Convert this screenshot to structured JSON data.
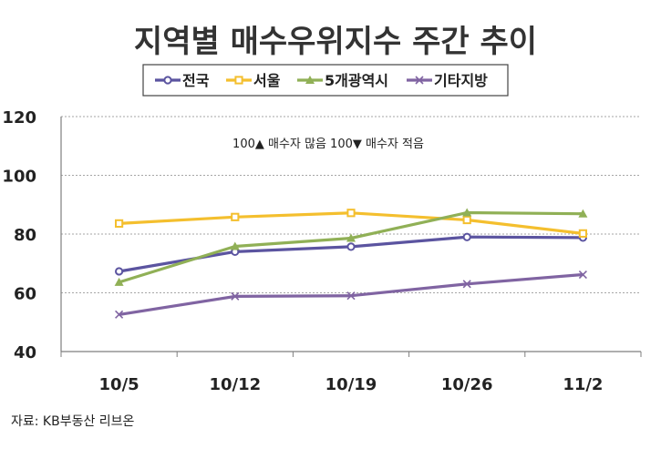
{
  "chart_data": {
    "type": "line",
    "title": "지역별 매수우위지수 주간 추이",
    "annotation": "100▲ 매수자 많음 100▼ 매수자 적음",
    "source": "자료: KB부동산 리브온",
    "categories": [
      "10/5",
      "10/12",
      "10/19",
      "10/26",
      "11/2"
    ],
    "ylim": [
      40,
      120
    ],
    "yticks": [
      "40",
      "60",
      "80",
      "100",
      "120"
    ],
    "grid": true,
    "legend_position": "top",
    "series": [
      {
        "name": "전국",
        "color": "#5b54a0",
        "marker": "circle",
        "values": [
          67.3,
          74.0,
          75.7,
          79.0,
          78.8
        ]
      },
      {
        "name": "서울",
        "color": "#f4bf2e",
        "marker": "square",
        "values": [
          83.6,
          85.8,
          87.2,
          84.8,
          80.2
        ]
      },
      {
        "name": "5개광역시",
        "color": "#90b056",
        "marker": "triangle",
        "values": [
          63.6,
          75.8,
          78.6,
          87.3,
          86.9
        ]
      },
      {
        "name": "기타지방",
        "color": "#8064a2",
        "marker": "x",
        "values": [
          52.6,
          58.8,
          59.0,
          63.0,
          66.2
        ]
      }
    ]
  }
}
